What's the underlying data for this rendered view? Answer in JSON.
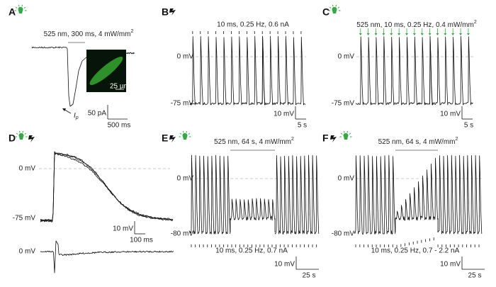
{
  "panels": [
    {
      "label": "A",
      "stimulus": "525 nm, 300 ms, 4 mW/mm",
      "stimulus_sup": "2",
      "current_label": "I",
      "current_sub": "p",
      "scale_y": "50 pA",
      "scale_x": "500 ms",
      "inset_scale": "25 µm"
    },
    {
      "label": "B",
      "stimulus": "10 ms, 0.25 Hz, 0.6 nA",
      "level_high": "0 mV",
      "level_low": "-75 mV",
      "scale_y": "10 mV",
      "scale_x": "5 s"
    },
    {
      "label": "C",
      "stimulus": "525 nm, 10 ms, 0.25 Hz, 0.4 mW/mm",
      "stimulus_sup": "2",
      "level_high": "0 mV",
      "level_low": "-75 mV",
      "scale_y": "10 mV",
      "scale_x": "5 s"
    },
    {
      "label": "D",
      "level_high": "0 mV",
      "level_low": "-75 mV",
      "scale_y": "10 mV",
      "scale_x": "100 ms",
      "diff_level": "0 mV"
    },
    {
      "label": "E",
      "stimulus": "525 nm, 64 s, 4 mW/mm",
      "stimulus_sup": "2",
      "level_high": "0 mV",
      "level_low": "-80 mV",
      "bottom_stimulus": "10 ms, 0.25 Hz, 0.7 nA",
      "scale_y": "10 mV",
      "scale_x": "25 s"
    },
    {
      "label": "F",
      "stimulus": "525 nm, 64 s, 4 mW/mm",
      "stimulus_sup": "2",
      "level_high": "0 mV",
      "level_low": "-80 mV",
      "bottom_stimulus": "10 ms, 0.25 Hz, 0.7 - 2.2 nA",
      "scale_y": "10 mV",
      "scale_x": "25 s"
    }
  ]
}
